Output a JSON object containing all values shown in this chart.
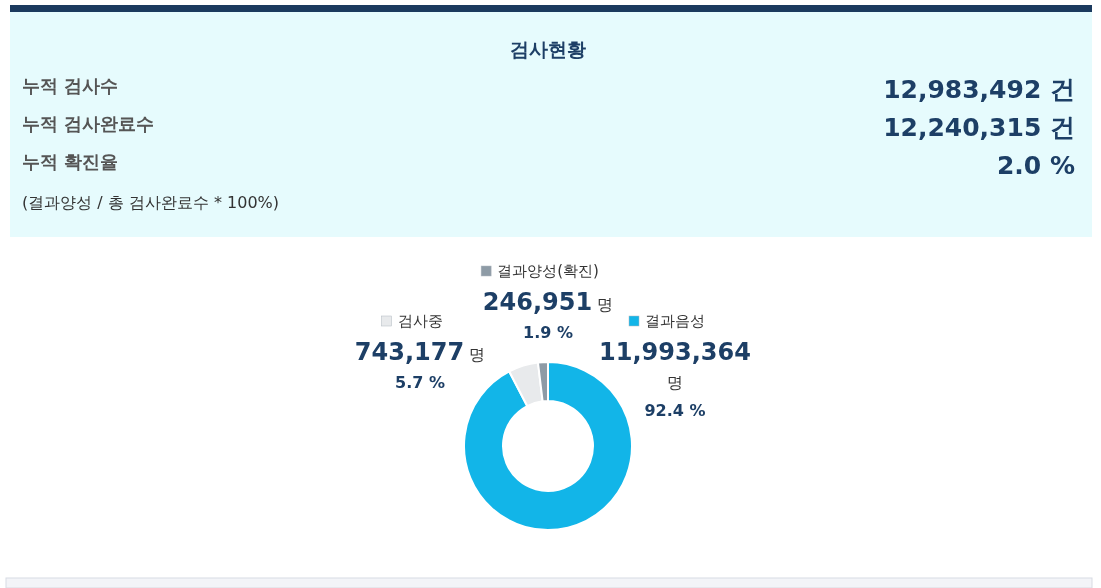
{
  "chart_data": [
    {
      "type": "other",
      "title": "검사현황",
      "annotations": [
        "누적 검사수",
        "12,983,492 건",
        "누적 검사완료수",
        "12,240,315 건",
        "누적 확진율",
        "2.0 %",
        "(결과양성 / 총 검사완료수 * 100%)"
      ]
    },
    {
      "type": "donut",
      "categories": [
        "결과음성",
        "검사중",
        "결과양성(확진)"
      ],
      "values": [
        11993364,
        743177,
        246951
      ],
      "colors": [
        "#12b5e8",
        "#e8eaec",
        "#8e9ba6"
      ],
      "legend": "top",
      "value_labels": [
        "11,993,364\n명\n92.4 %",
        "743,177 명\n5.7 %",
        "246,951 명\n1.9 %"
      ]
    }
  ]
}
